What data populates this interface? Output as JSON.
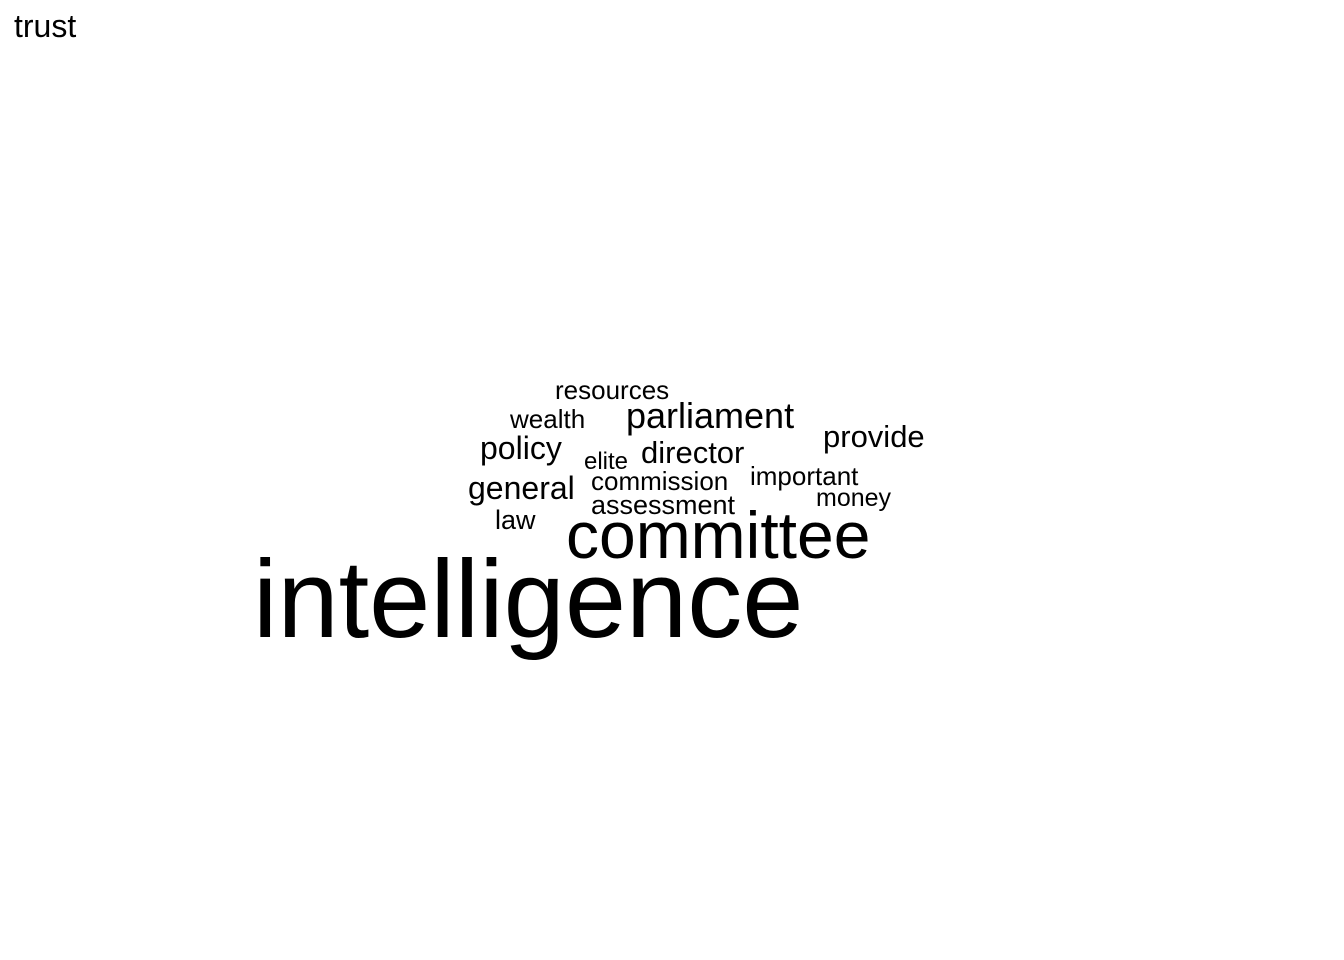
{
  "title": "trust",
  "text_color": "#000000",
  "background_color": "#ffffff",
  "words": [
    {
      "id": "intelligence",
      "text": "intelligence"
    },
    {
      "id": "committee",
      "text": "committee"
    },
    {
      "id": "parliament",
      "text": "parliament"
    },
    {
      "id": "provide",
      "text": "provide"
    },
    {
      "id": "director",
      "text": "director"
    },
    {
      "id": "policy",
      "text": "policy"
    },
    {
      "id": "general",
      "text": "general"
    },
    {
      "id": "resources",
      "text": "resources"
    },
    {
      "id": "wealth",
      "text": "wealth"
    },
    {
      "id": "elite",
      "text": "elite"
    },
    {
      "id": "commission",
      "text": "commission"
    },
    {
      "id": "important",
      "text": "important"
    },
    {
      "id": "assessment",
      "text": "assessment"
    },
    {
      "id": "money",
      "text": "money"
    },
    {
      "id": "law",
      "text": "law"
    }
  ]
}
